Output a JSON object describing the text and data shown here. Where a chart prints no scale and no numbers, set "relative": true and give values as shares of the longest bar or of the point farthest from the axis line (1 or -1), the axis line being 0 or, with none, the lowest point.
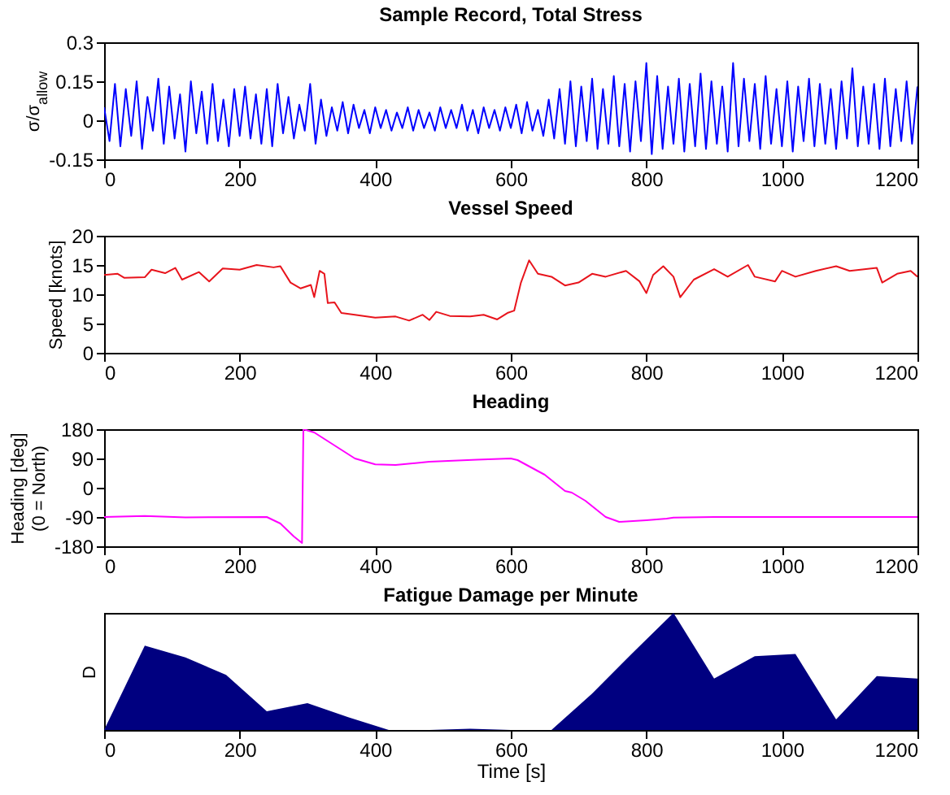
{
  "chart_data": [
    {
      "type": "line",
      "title": "Sample Record, Total Stress",
      "ylabel": "σ/σ$_{allow}$",
      "xlim": [
        0,
        1200
      ],
      "xticks": [
        0,
        200,
        400,
        600,
        800,
        1000,
        1200
      ],
      "ylim": [
        -0.15,
        0.3
      ],
      "yticks": [
        -0.15,
        0,
        0.15,
        0.3
      ],
      "x": [
        0,
        8,
        16,
        24,
        32,
        40,
        48,
        56,
        64,
        72,
        80,
        88,
        96,
        104,
        112,
        120,
        128,
        136,
        144,
        152,
        160,
        168,
        176,
        184,
        192,
        200,
        208,
        216,
        224,
        232,
        240,
        248,
        256,
        264,
        272,
        280,
        288,
        296,
        304,
        312,
        320,
        328,
        336,
        344,
        352,
        360,
        368,
        376,
        384,
        392,
        400,
        408,
        416,
        424,
        432,
        440,
        448,
        456,
        464,
        472,
        480,
        488,
        496,
        504,
        512,
        520,
        528,
        536,
        544,
        552,
        560,
        568,
        576,
        584,
        592,
        600,
        608,
        616,
        624,
        632,
        640,
        648,
        656,
        664,
        672,
        680,
        688,
        696,
        704,
        712,
        720,
        728,
        736,
        744,
        752,
        760,
        768,
        776,
        784,
        792,
        800,
        808,
        816,
        824,
        832,
        840,
        848,
        856,
        864,
        872,
        880,
        888,
        896,
        904,
        912,
        920,
        928,
        936,
        944,
        952,
        960,
        968,
        976,
        984,
        992,
        1000,
        1008,
        1016,
        1024,
        1032,
        1040,
        1048,
        1056,
        1064,
        1072,
        1080,
        1088,
        1096,
        1104,
        1112,
        1120,
        1128,
        1136,
        1144,
        1152,
        1160,
        1168,
        1176,
        1184,
        1192,
        1200
      ],
      "series": [
        {
          "color": "#0000ff",
          "values": [
            0.05,
            -0.08,
            0.14,
            -0.1,
            0.12,
            -0.06,
            0.15,
            -0.11,
            0.09,
            -0.04,
            0.16,
            -0.09,
            0.13,
            -0.07,
            0.1,
            -0.12,
            0.15,
            -0.05,
            0.11,
            -0.09,
            0.14,
            -0.08,
            0.08,
            -0.1,
            0.12,
            -0.06,
            0.13,
            -0.07,
            0.1,
            -0.09,
            0.12,
            -0.1,
            0.14,
            -0.05,
            0.09,
            -0.07,
            0.06,
            -0.04,
            0.14,
            -0.09,
            0.08,
            -0.06,
            0.05,
            -0.04,
            0.07,
            -0.05,
            0.06,
            -0.03,
            0.04,
            -0.05,
            0.05,
            -0.03,
            0.04,
            -0.04,
            0.03,
            -0.03,
            0.05,
            -0.04,
            0.04,
            -0.03,
            0.03,
            -0.04,
            0.05,
            -0.03,
            0.04,
            -0.03,
            0.06,
            -0.04,
            0.04,
            -0.05,
            0.05,
            -0.03,
            0.04,
            -0.04,
            0.05,
            -0.03,
            0.06,
            -0.05,
            0.07,
            -0.04,
            0.04,
            -0.06,
            0.08,
            -0.07,
            0.12,
            -0.09,
            0.15,
            -0.1,
            0.13,
            -0.08,
            0.16,
            -0.11,
            0.12,
            -0.09,
            0.17,
            -0.1,
            0.14,
            -0.12,
            0.15,
            -0.08,
            0.22,
            -0.13,
            0.17,
            -0.11,
            0.13,
            -0.09,
            0.16,
            -0.12,
            0.14,
            -0.1,
            0.18,
            -0.11,
            0.15,
            -0.09,
            0.13,
            -0.12,
            0.22,
            -0.1,
            0.16,
            -0.08,
            0.14,
            -0.11,
            0.17,
            -0.09,
            0.12,
            -0.1,
            0.15,
            -0.12,
            0.13,
            -0.08,
            0.16,
            -0.1,
            0.14,
            -0.09,
            0.12,
            -0.11,
            0.15,
            -0.07,
            0.2,
            -0.1,
            0.13,
            -0.09,
            0.14,
            -0.11,
            0.16,
            -0.1,
            0.12,
            -0.08,
            0.15,
            -0.09,
            0.13
          ]
        }
      ]
    },
    {
      "type": "line",
      "title": "Vessel Speed",
      "ylabel": "Speed [knots]",
      "xlim": [
        0,
        1200
      ],
      "xticks": [
        0,
        200,
        400,
        600,
        800,
        1000,
        1200
      ],
      "ylim": [
        0,
        20
      ],
      "yticks": [
        0,
        5,
        10,
        15,
        20
      ],
      "x": [
        0,
        20,
        30,
        60,
        70,
        90,
        105,
        115,
        140,
        155,
        175,
        200,
        225,
        250,
        260,
        275,
        290,
        305,
        310,
        318,
        325,
        330,
        340,
        350,
        370,
        400,
        430,
        450,
        470,
        480,
        490,
        510,
        540,
        560,
        580,
        595,
        605,
        615,
        627,
        640,
        660,
        680,
        700,
        720,
        740,
        770,
        790,
        800,
        810,
        825,
        840,
        850,
        870,
        900,
        920,
        950,
        960,
        990,
        1000,
        1020,
        1050,
        1080,
        1100,
        1140,
        1148,
        1170,
        1190,
        1200
      ],
      "series": [
        {
          "color": "#e8141c",
          "values": [
            13.3,
            13.5,
            12.8,
            12.9,
            14.2,
            13.6,
            14.5,
            12.5,
            13.8,
            12.2,
            14.4,
            14.2,
            15,
            14.6,
            14.8,
            12,
            11,
            11.6,
            9.5,
            14,
            13.5,
            8.5,
            8.6,
            6.8,
            6.5,
            6,
            6.2,
            5.5,
            6.5,
            5.6,
            7,
            6.3,
            6.2,
            6.5,
            5.7,
            6.8,
            7.2,
            12,
            15.8,
            13.5,
            13,
            11.5,
            12,
            13.5,
            13,
            14,
            12.2,
            10.2,
            13.3,
            14.8,
            13,
            9.5,
            12.5,
            14.3,
            13,
            15,
            13,
            12.2,
            14,
            13,
            14,
            14.8,
            14,
            14.5,
            12,
            13.5,
            14,
            13
          ]
        }
      ]
    },
    {
      "type": "line",
      "title": "Heading",
      "ylabel": "Heading [deg] (0 = North)",
      "xlim": [
        0,
        1200
      ],
      "xticks": [
        0,
        200,
        400,
        600,
        800,
        1000,
        1200
      ],
      "ylim": [
        -180,
        180
      ],
      "yticks": [
        -180,
        -90,
        0,
        90,
        180
      ],
      "x": [
        0,
        60,
        120,
        240,
        260,
        280,
        292,
        294,
        310,
        340,
        370,
        400,
        430,
        480,
        550,
        600,
        610,
        650,
        680,
        690,
        710,
        740,
        760,
        800,
        830,
        840,
        900,
        1200
      ],
      "series": [
        {
          "color": "#ff00ff",
          "values": [
            -90,
            -87,
            -91,
            -90,
            -110,
            -150,
            -170,
            180,
            170,
            130,
            90,
            72,
            70,
            80,
            86,
            90,
            85,
            40,
            -10,
            -15,
            -40,
            -90,
            -105,
            -100,
            -95,
            -92,
            -90,
            -90
          ]
        }
      ]
    },
    {
      "type": "area",
      "title": "Fatigue Damage per Minute",
      "xlabel": "Time [s]",
      "ylabel": "D",
      "relative": true,
      "tick_labels": "x",
      "xlim": [
        0,
        1200
      ],
      "xticks": [
        0,
        200,
        400,
        600,
        800,
        1000,
        1200
      ],
      "x": [
        0,
        60,
        120,
        180,
        240,
        300,
        360,
        420,
        480,
        540,
        600,
        660,
        720,
        780,
        840,
        900,
        960,
        1020,
        1080,
        1140,
        1200
      ],
      "series": [
        {
          "color": "#000080",
          "values": [
            0,
            0.72,
            0.62,
            0.47,
            0.16,
            0.23,
            0.11,
            0,
            0,
            0.01,
            0,
            0,
            0.31,
            0.66,
            1,
            0.44,
            0.63,
            0.65,
            0.09,
            0.46,
            0.44
          ]
        }
      ]
    }
  ]
}
